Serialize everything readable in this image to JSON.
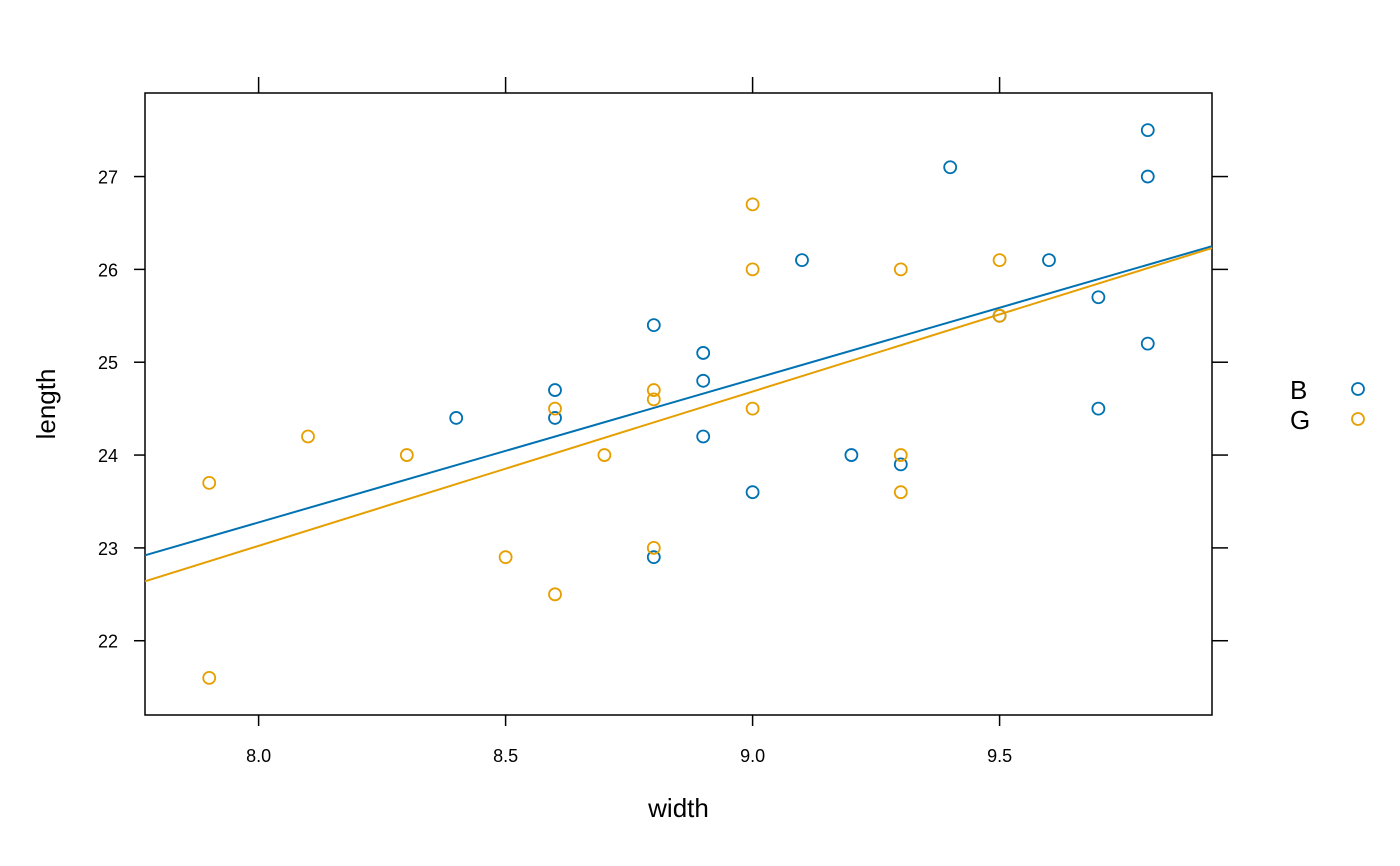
{
  "chart_data": {
    "type": "scatter",
    "title": "",
    "xlabel": "width",
    "ylabel": "length",
    "xlim": [
      7.77,
      9.93
    ],
    "ylim": [
      21.2,
      27.9
    ],
    "xticks": [
      8.0,
      8.5,
      9.0,
      9.5
    ],
    "xtick_labels": [
      "8.0",
      "8.5",
      "9.0",
      "9.5"
    ],
    "yticks": [
      22,
      23,
      24,
      25,
      26,
      27
    ],
    "ytick_labels": [
      "22",
      "23",
      "24",
      "25",
      "26",
      "27"
    ],
    "grid": false,
    "legend_position": "right",
    "series": [
      {
        "name": "B",
        "color": "#0072B2",
        "points": [
          [
            8.4,
            24.4
          ],
          [
            8.6,
            24.7
          ],
          [
            8.6,
            24.4
          ],
          [
            8.8,
            25.4
          ],
          [
            8.8,
            22.9
          ],
          [
            8.9,
            25.1
          ],
          [
            8.9,
            24.8
          ],
          [
            8.9,
            24.2
          ],
          [
            9.0,
            23.6
          ],
          [
            9.1,
            26.1
          ],
          [
            9.2,
            24.0
          ],
          [
            9.3,
            23.9
          ],
          [
            9.4,
            27.1
          ],
          [
            9.5,
            25.5
          ],
          [
            9.6,
            26.1
          ],
          [
            9.7,
            25.7
          ],
          [
            9.7,
            24.5
          ],
          [
            9.8,
            27.5
          ],
          [
            9.8,
            27.0
          ],
          [
            9.8,
            25.2
          ]
        ],
        "fit": {
          "x": [
            7.77,
            9.93
          ],
          "y": [
            22.92,
            26.25
          ]
        }
      },
      {
        "name": "G",
        "color": "#E69F00",
        "points": [
          [
            7.9,
            23.7
          ],
          [
            7.9,
            21.6
          ],
          [
            8.1,
            24.2
          ],
          [
            8.3,
            24.0
          ],
          [
            8.5,
            22.9
          ],
          [
            8.6,
            24.5
          ],
          [
            8.6,
            22.5
          ],
          [
            8.7,
            24.0
          ],
          [
            8.8,
            24.7
          ],
          [
            8.8,
            24.6
          ],
          [
            8.8,
            23.0
          ],
          [
            9.0,
            26.7
          ],
          [
            9.0,
            26.0
          ],
          [
            9.0,
            24.5
          ],
          [
            9.3,
            26.0
          ],
          [
            9.3,
            24.0
          ],
          [
            9.3,
            23.6
          ],
          [
            9.5,
            26.1
          ],
          [
            9.5,
            25.5
          ]
        ],
        "fit": {
          "x": [
            7.77,
            9.93
          ],
          "y": [
            22.64,
            26.23
          ]
        }
      }
    ]
  }
}
